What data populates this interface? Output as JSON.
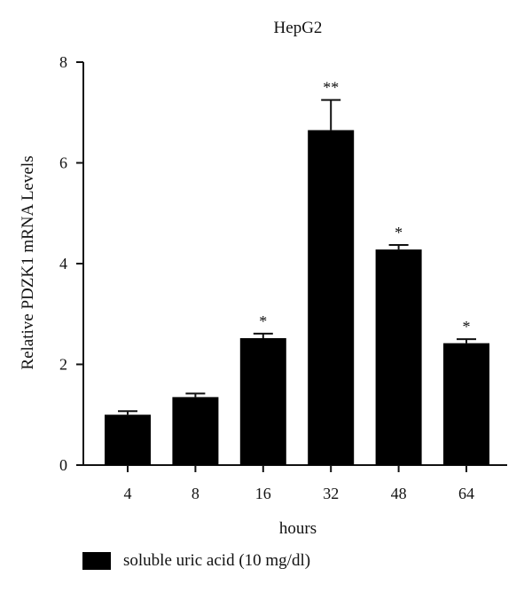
{
  "chart_data": {
    "type": "bar",
    "title": "HepG2",
    "xlabel": "hours",
    "ylabel": "Relative PDZK1 mRNA Levels",
    "categories": [
      "4",
      "8",
      "16",
      "32",
      "48",
      "64"
    ],
    "series": [
      {
        "name": "soluble uric acid (10 mg/dl)",
        "values": [
          1.0,
          1.35,
          2.52,
          6.65,
          4.28,
          2.42
        ],
        "errors": [
          0.07,
          0.07,
          0.09,
          0.6,
          0.09,
          0.08
        ],
        "significance": [
          "",
          "",
          "*",
          "**",
          "*",
          "*"
        ],
        "color": "#000000"
      }
    ],
    "ylim": [
      0,
      8
    ],
    "yticks": [
      0,
      2,
      4,
      6,
      8
    ],
    "grid": false,
    "legend_position": "bottom-left"
  }
}
